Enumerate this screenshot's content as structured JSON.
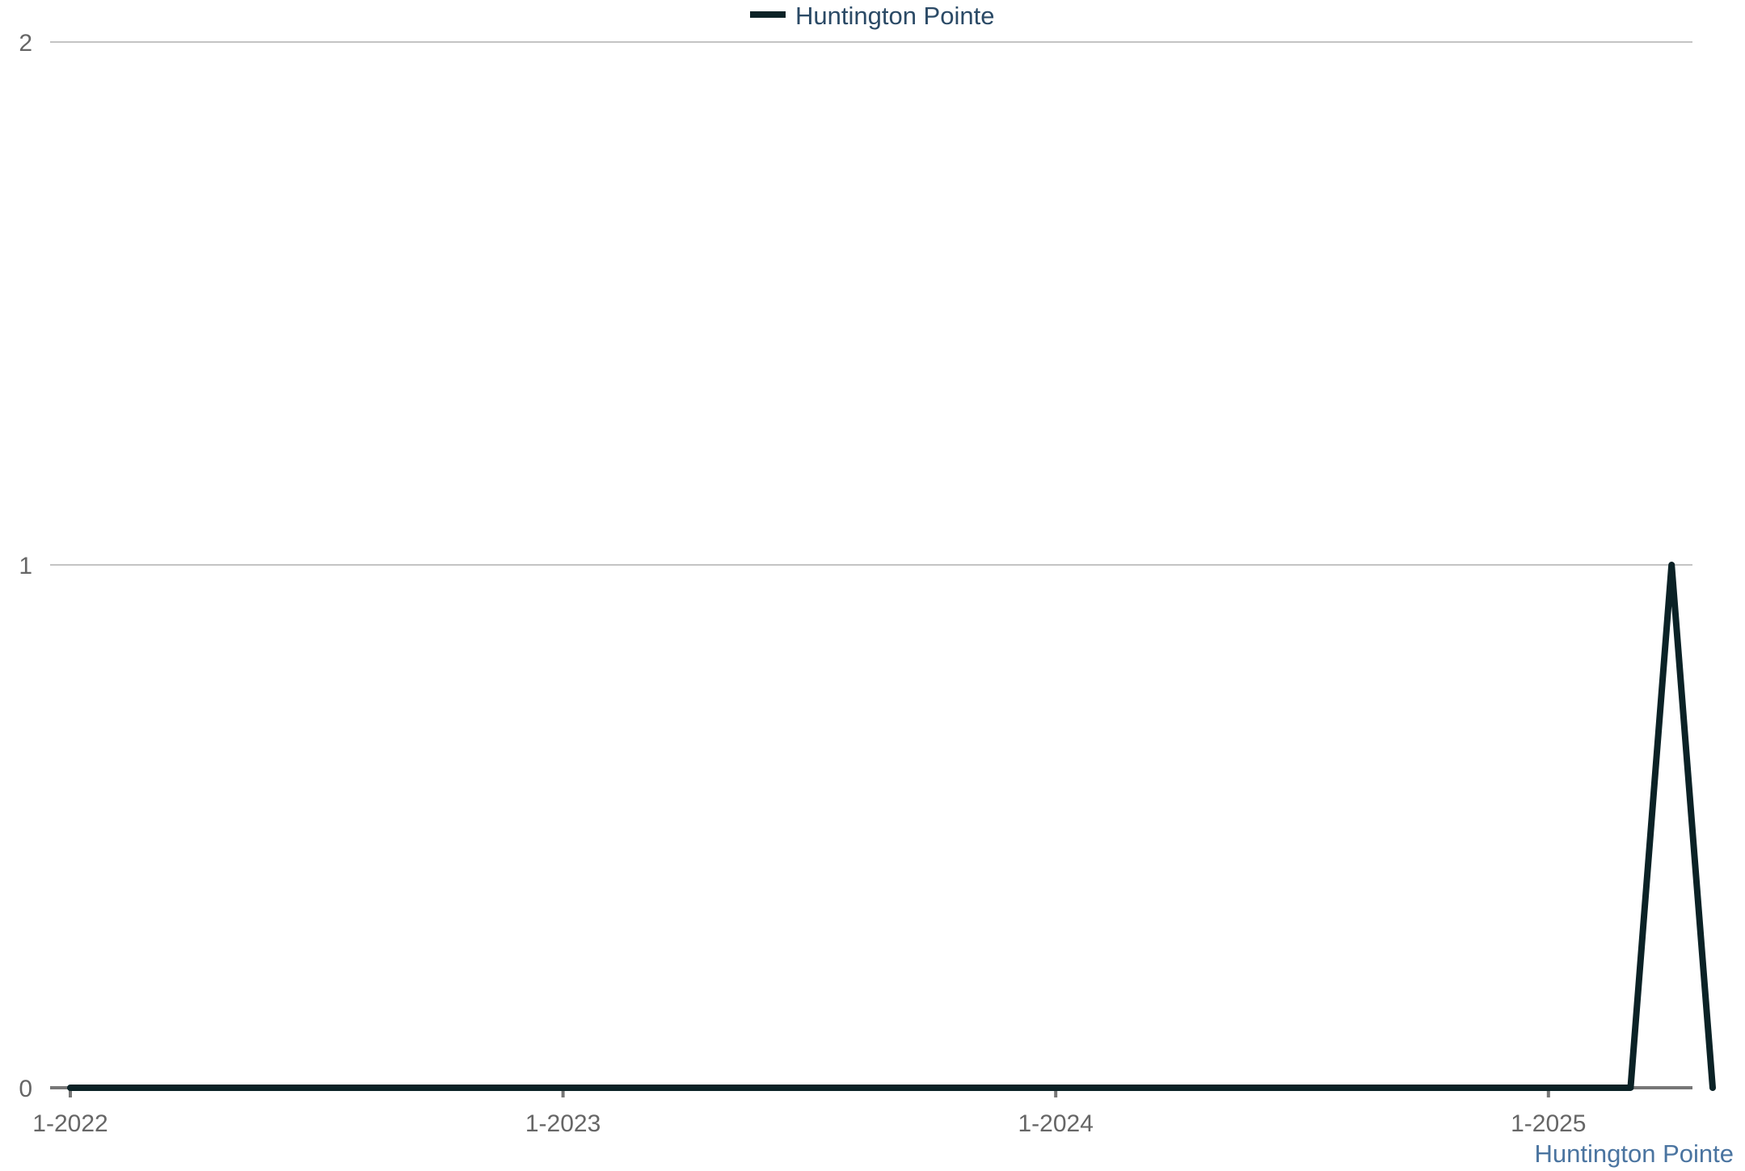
{
  "chart_data": {
    "type": "line",
    "title": "",
    "xlabel": "",
    "ylabel": "",
    "ylim": [
      0,
      2
    ],
    "y_ticks": [
      0,
      1,
      2
    ],
    "x_ticks": [
      "1-2022",
      "1-2023",
      "1-2024",
      "1-2025"
    ],
    "grid": true,
    "legend_position": "top-center",
    "series": [
      {
        "name": "Huntington Pointe",
        "color": "#0b2226",
        "x": [
          "1-2022",
          "2-2022",
          "3-2022",
          "4-2022",
          "5-2022",
          "6-2022",
          "7-2022",
          "8-2022",
          "9-2022",
          "10-2022",
          "11-2022",
          "12-2022",
          "1-2023",
          "2-2023",
          "3-2023",
          "4-2023",
          "5-2023",
          "6-2023",
          "7-2023",
          "8-2023",
          "9-2023",
          "10-2023",
          "11-2023",
          "12-2023",
          "1-2024",
          "2-2024",
          "3-2024",
          "4-2024",
          "5-2024",
          "6-2024",
          "7-2024",
          "8-2024",
          "9-2024",
          "10-2024",
          "11-2024",
          "12-2024",
          "1-2025",
          "2-2025",
          "3-2025",
          "4-2025",
          "5-2025"
        ],
        "values": [
          0,
          0,
          0,
          0,
          0,
          0,
          0,
          0,
          0,
          0,
          0,
          0,
          0,
          0,
          0,
          0,
          0,
          0,
          0,
          0,
          0,
          0,
          0,
          0,
          0,
          0,
          0,
          0,
          0,
          0,
          0,
          0,
          0,
          0,
          0,
          0,
          0,
          0,
          0,
          1,
          0
        ]
      }
    ],
    "credit": "Huntington Pointe"
  },
  "legend": {
    "label": "Huntington Pointe"
  }
}
